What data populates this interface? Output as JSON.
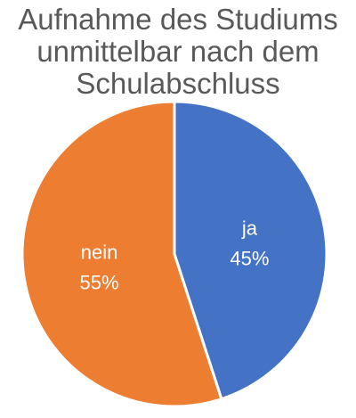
{
  "chart_data": {
    "type": "pie",
    "title_lines": [
      "Aufnahme des Studiums",
      "unmittelbar nach dem",
      "Schulabschluss"
    ],
    "slices": [
      {
        "label": "ja",
        "value": 45,
        "value_label": "45%",
        "color": "#4472C4"
      },
      {
        "label": "nein",
        "value": 55,
        "value_label": "55%",
        "color": "#ED7D31"
      }
    ]
  }
}
